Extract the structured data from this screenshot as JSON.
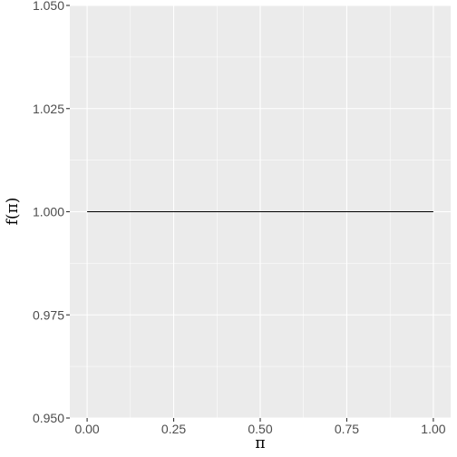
{
  "chart_data": {
    "type": "line",
    "xlabel": "π",
    "ylabel": "f(π)",
    "xlim": [
      -0.05,
      1.05
    ],
    "ylim": [
      0.95,
      1.05
    ],
    "x_ticks": [
      0.0,
      0.25,
      0.5,
      0.75,
      1.0
    ],
    "x_tick_labels": [
      "0.00",
      "0.25",
      "0.50",
      "0.75",
      "1.00"
    ],
    "y_ticks": [
      0.95,
      0.975,
      1.0,
      1.025,
      1.05
    ],
    "y_tick_labels": [
      "0.950",
      "0.975",
      "1.000",
      "1.025",
      "1.050"
    ],
    "grid": true,
    "legend": "none",
    "series": [
      {
        "x": [
          0.0,
          1.0
        ],
        "y": [
          1.0,
          1.0
        ]
      }
    ],
    "colors": {
      "panel_background": "#ebebeb",
      "grid_major": "#ffffff",
      "line": "#000000",
      "tick_label": "#4d4d4d"
    }
  }
}
